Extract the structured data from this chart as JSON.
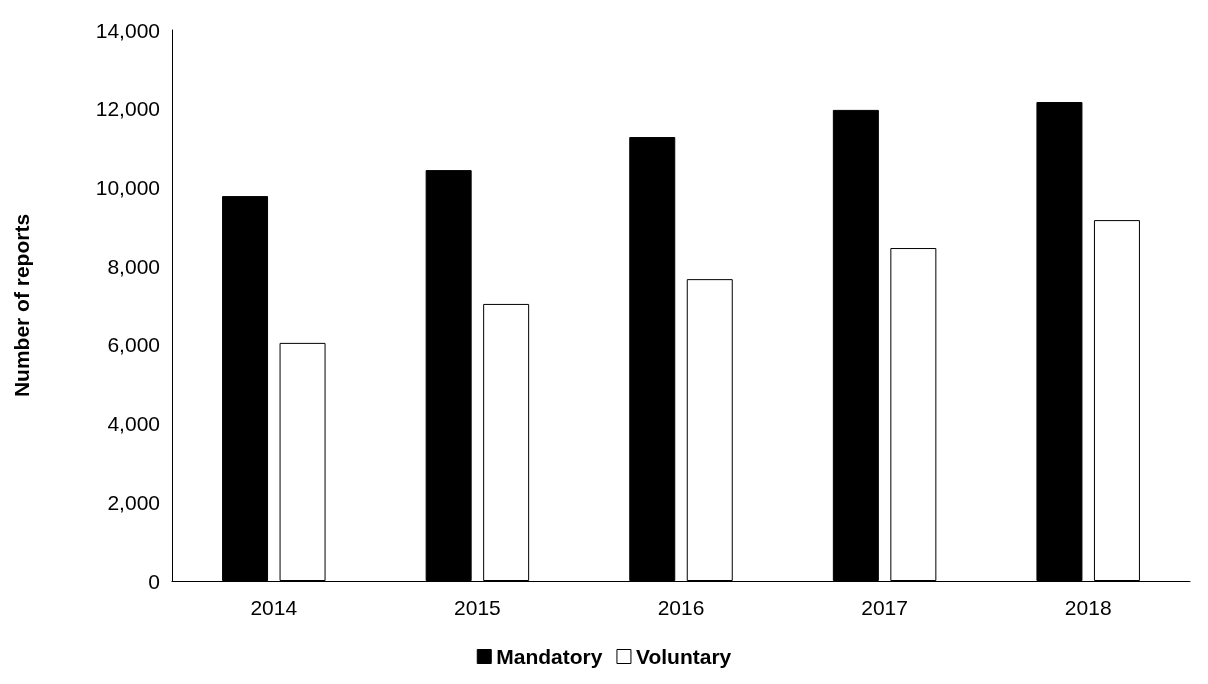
{
  "chart_data": {
    "type": "bar",
    "ylabel": "Number of reports",
    "categories": [
      "2014",
      "2015",
      "2016",
      "2017",
      "2018"
    ],
    "series": [
      {
        "name": "Mandatory",
        "color": "#000000",
        "values": [
          9780,
          10440,
          11280,
          11970,
          12170
        ]
      },
      {
        "name": "Voluntary",
        "color": "#ffffff",
        "values": [
          6050,
          7040,
          7670,
          8460,
          9170
        ]
      }
    ],
    "ylim": [
      0,
      14000
    ],
    "yticks": [
      0,
      {
        "value": 2000,
        "label": "2,000"
      },
      {
        "value": 4000,
        "label": "4,000"
      },
      {
        "value": 6000,
        "label": "6,000"
      },
      {
        "value": 8000,
        "label": "8,000"
      },
      {
        "value": 10000,
        "label": "10,000"
      },
      {
        "value": 12000,
        "label": "12,000"
      },
      {
        "value": 14000,
        "label": "14,000"
      }
    ],
    "grid": false,
    "legend": "bottom"
  }
}
